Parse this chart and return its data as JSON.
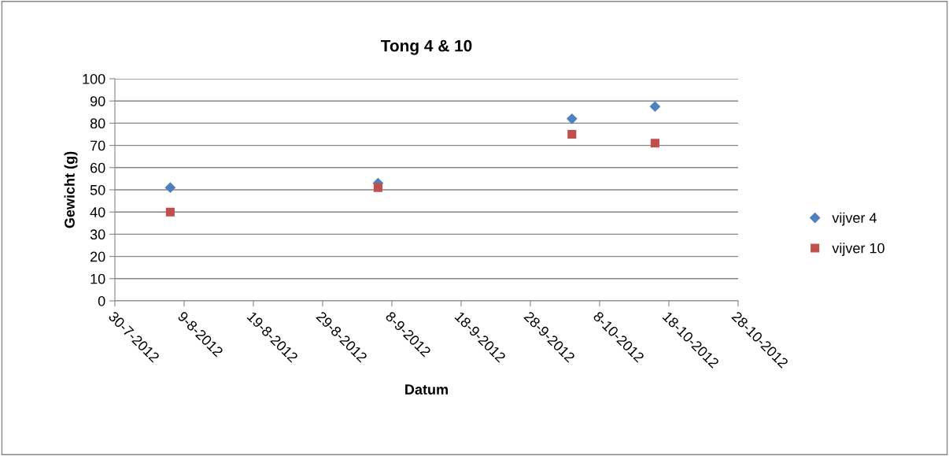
{
  "chart_data": {
    "type": "scatter",
    "title": "Tong 4 & 10",
    "xlabel": "Datum",
    "ylabel": "Gewicht (g)",
    "series": [
      {
        "name": "vijver 4",
        "color": "#4f81bd",
        "marker": "diamond",
        "x": [
          "2012-08-07",
          "2012-09-06",
          "2012-10-04",
          "2012-10-16"
        ],
        "values": [
          51,
          53,
          82,
          87.5
        ]
      },
      {
        "name": "vijver 10",
        "color": "#c0504d",
        "marker": "square",
        "x": [
          "2012-08-07",
          "2012-09-06",
          "2012-10-04",
          "2012-10-16"
        ],
        "values": [
          40,
          51,
          75,
          71
        ]
      }
    ],
    "xlim": [
      "2012-07-30",
      "2012-10-28"
    ],
    "xticks": [
      {
        "value": "2012-07-30",
        "label": "30-7-2012"
      },
      {
        "value": "2012-08-09",
        "label": "9-8-2012"
      },
      {
        "value": "2012-08-19",
        "label": "19-8-2012"
      },
      {
        "value": "2012-08-29",
        "label": "29-8-2012"
      },
      {
        "value": "2012-09-08",
        "label": "8-9-2012"
      },
      {
        "value": "2012-09-18",
        "label": "18-9-2012"
      },
      {
        "value": "2012-09-28",
        "label": "28-9-2012"
      },
      {
        "value": "2012-10-08",
        "label": "8-10-2012"
      },
      {
        "value": "2012-10-18",
        "label": "18-10-2012"
      },
      {
        "value": "2012-10-28",
        "label": "28-10-2012"
      }
    ],
    "ylim": [
      0,
      100
    ],
    "yticks": [
      0,
      10,
      20,
      30,
      40,
      50,
      60,
      70,
      80,
      90,
      100
    ],
    "grid": "y",
    "legend": "right"
  }
}
